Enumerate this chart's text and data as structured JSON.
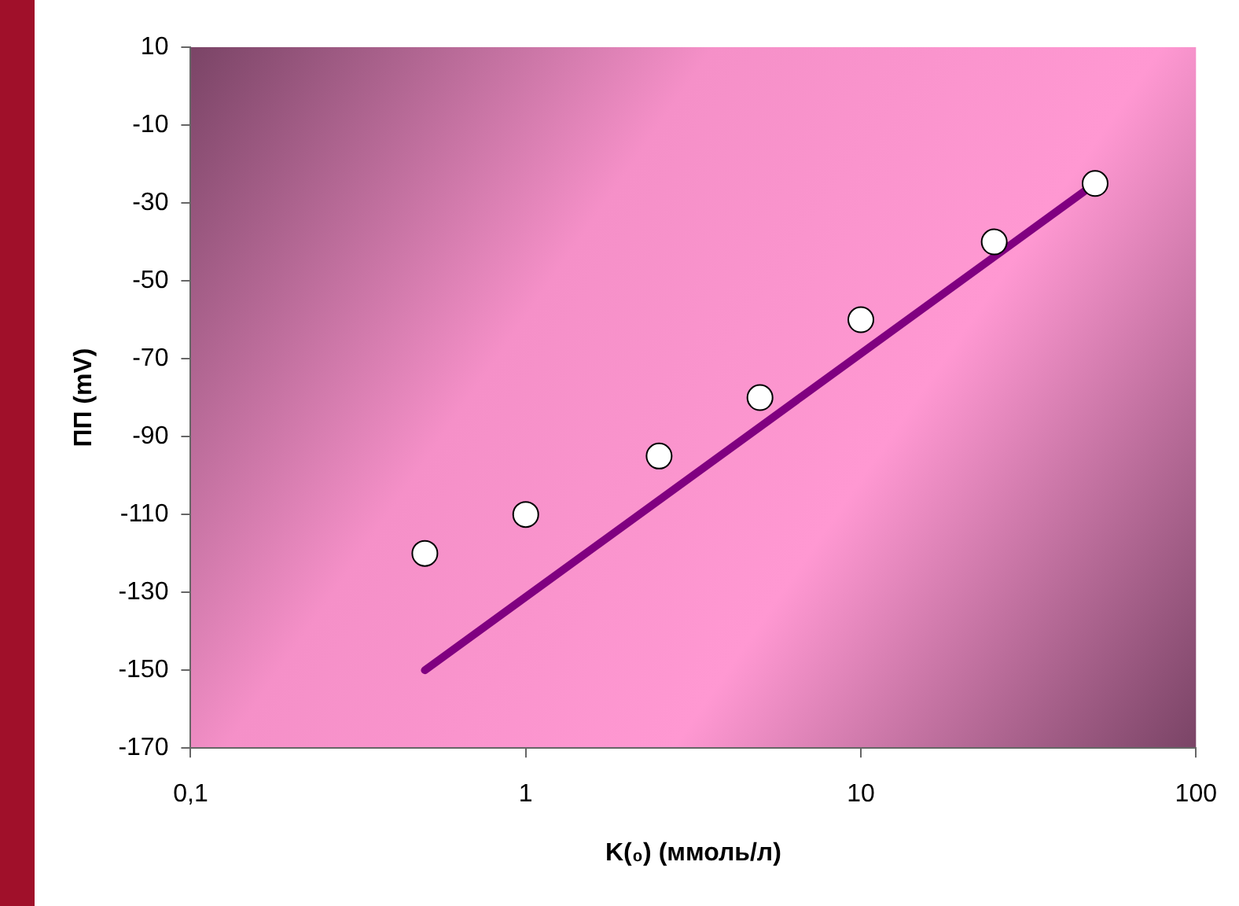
{
  "chart_data": {
    "type": "scatter",
    "xlabel": "K(₀) (ммоль/л)",
    "ylabel": "ПП (mV)",
    "log": "x",
    "xlim": [
      0.1,
      100
    ],
    "xticks": [
      {
        "value": 0.1,
        "label": "0,1"
      },
      1,
      10,
      100
    ],
    "ylim": [
      -170,
      10
    ],
    "yticks": [
      -170,
      -150,
      -130,
      -110,
      -90,
      -70,
      -50,
      -30,
      -10,
      10
    ],
    "grid": false,
    "legend": false,
    "series": [
      {
        "type": "scatter",
        "marker": "circle",
        "color": "#ffffff",
        "x": [
          0.5,
          1,
          2.5,
          5,
          10,
          25,
          50
        ],
        "values": [
          -120,
          -110,
          -95,
          -80,
          -60,
          -40,
          -25
        ]
      },
      {
        "type": "line",
        "marker": "none",
        "color": "#800080",
        "x": [
          0.5,
          50
        ],
        "values": [
          -150,
          -25
        ]
      }
    ]
  }
}
